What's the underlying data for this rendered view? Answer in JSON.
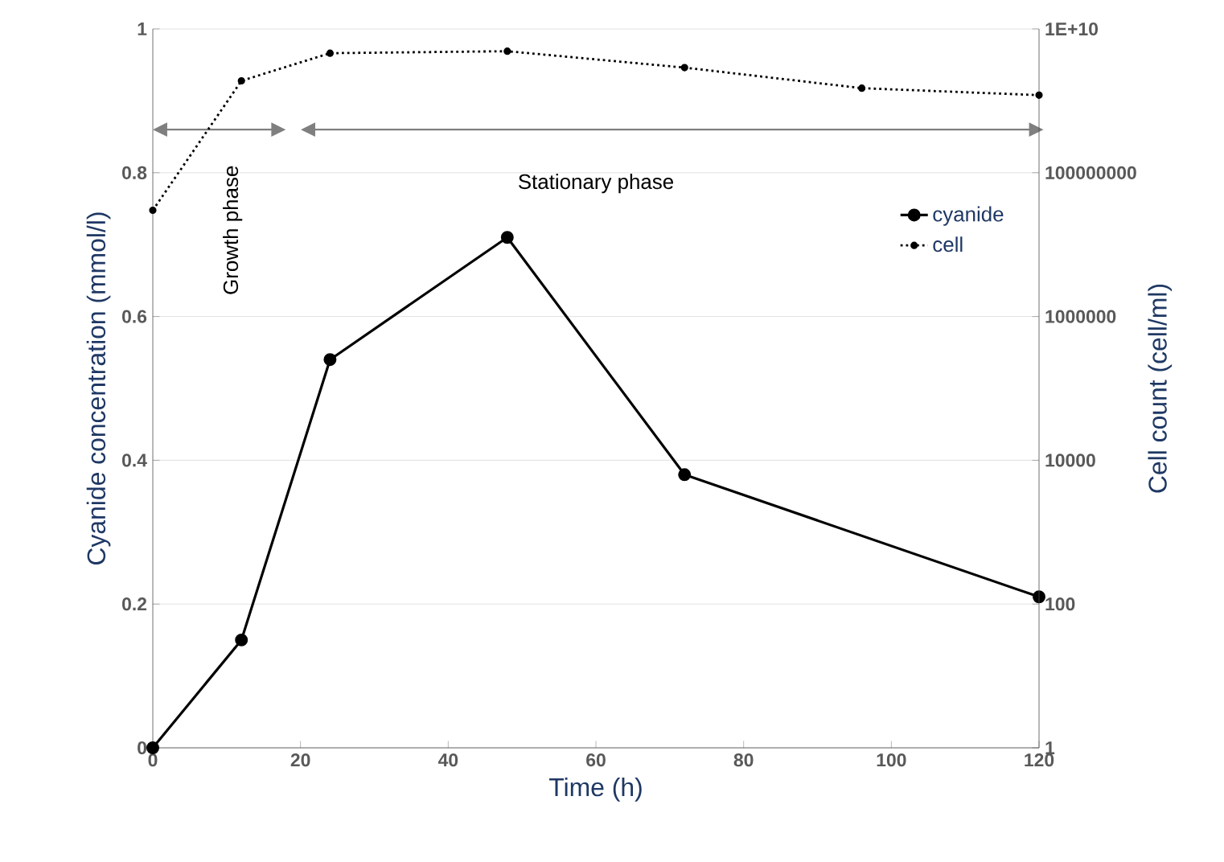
{
  "chart_data": {
    "type": "line",
    "xlabel": "Time (h)",
    "ylabel": "Cyanide concentration (mmol/l)",
    "y2label": "Cell count (cell/ml)",
    "x": [
      0,
      12,
      24,
      48,
      72,
      120
    ],
    "xlim": [
      0,
      120
    ],
    "xticks": [
      0,
      20,
      40,
      60,
      80,
      100,
      120
    ],
    "ylim": [
      0,
      1
    ],
    "yticks": [
      0,
      0.2,
      0.4,
      0.6,
      0.8,
      1
    ],
    "y2lim": [
      1,
      10000000000
    ],
    "y2ticks": [
      {
        "value": 1,
        "label": "1"
      },
      {
        "value": 100,
        "label": "100"
      },
      {
        "value": 10000,
        "label": "10000"
      },
      {
        "value": 1000000,
        "label": "1000000"
      },
      {
        "value": 100000000,
        "label": "100000000"
      },
      {
        "value": 10000000000,
        "label": "1E+10"
      }
    ],
    "log": "y2",
    "grid": "y",
    "legend": "right",
    "series": [
      {
        "name": "cyanide",
        "color": "#000000",
        "values": [
          0,
          0.15,
          0.54,
          0.71,
          0.38,
          0.21
        ],
        "marker": "circle",
        "line_style": "solid"
      },
      {
        "name": "cell",
        "color": "#000000",
        "axis": "y2",
        "x": [
          0,
          12,
          24,
          48,
          72,
          96,
          120
        ],
        "values": [
          30000000,
          1900000000,
          4600000000,
          4900000000,
          2900000000,
          1500000000,
          1200000000
        ],
        "marker": "circle",
        "line_style": "dotted"
      }
    ],
    "annotations": [
      "Growth phase",
      "Stationary phase"
    ]
  }
}
